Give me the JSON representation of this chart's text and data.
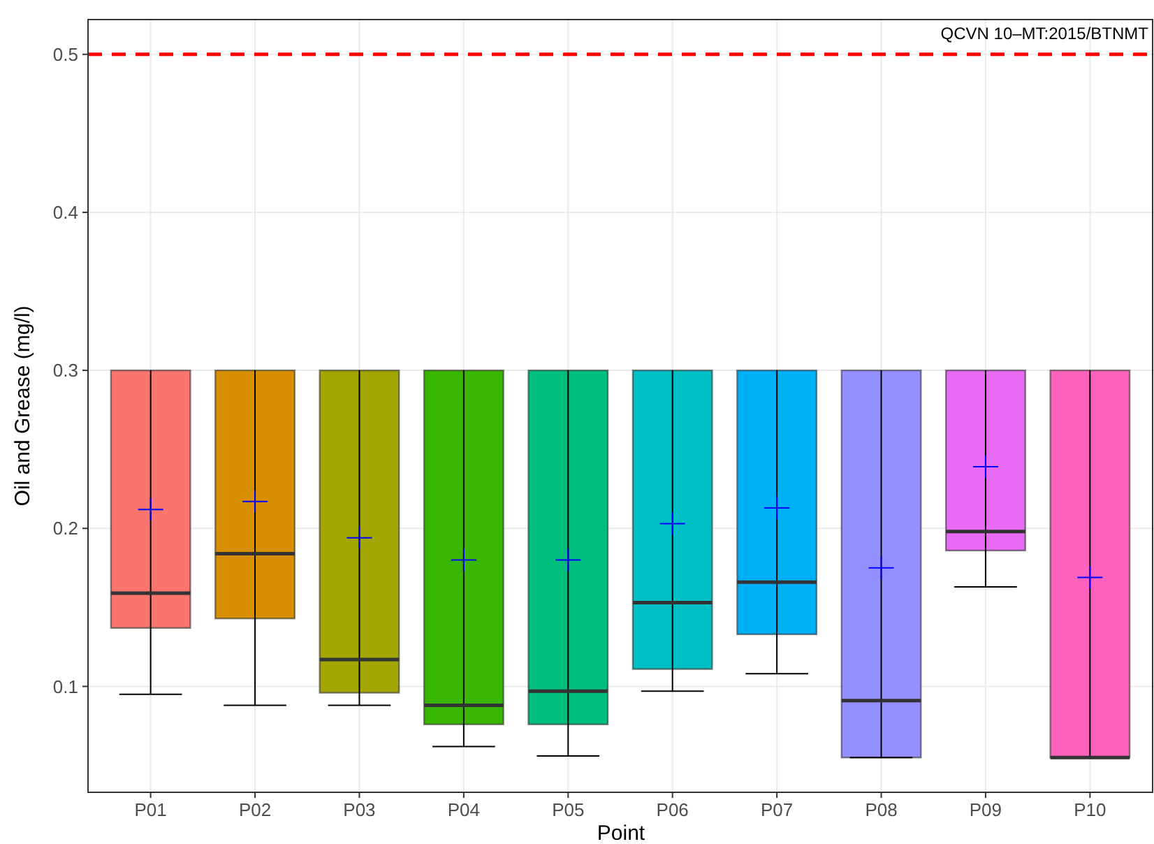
{
  "chart_data": {
    "type": "box",
    "xlabel": "Point",
    "ylabel": "Oil and Grease (mg/l)",
    "categories": [
      "P01",
      "P02",
      "P03",
      "P04",
      "P05",
      "P06",
      "P07",
      "P08",
      "P09",
      "P10"
    ],
    "colors": [
      "#f8766d",
      "#d89000",
      "#a3a500",
      "#39b600",
      "#00bf7d",
      "#00bfc4",
      "#00b0f6",
      "#9590ff",
      "#e76bf3",
      "#ff62bc"
    ],
    "boxes": [
      {
        "low": 0.095,
        "q1": 0.137,
        "median": 0.159,
        "q3": 0.3,
        "high": 0.3,
        "mean": 0.212
      },
      {
        "low": 0.088,
        "q1": 0.143,
        "median": 0.184,
        "q3": 0.3,
        "high": 0.3,
        "mean": 0.217
      },
      {
        "low": 0.088,
        "q1": 0.096,
        "median": 0.117,
        "q3": 0.3,
        "high": 0.3,
        "mean": 0.194
      },
      {
        "low": 0.062,
        "q1": 0.076,
        "median": 0.088,
        "q3": 0.3,
        "high": 0.3,
        "mean": 0.18
      },
      {
        "low": 0.056,
        "q1": 0.076,
        "median": 0.097,
        "q3": 0.3,
        "high": 0.3,
        "mean": 0.18
      },
      {
        "low": 0.097,
        "q1": 0.111,
        "median": 0.153,
        "q3": 0.3,
        "high": 0.3,
        "mean": 0.203
      },
      {
        "low": 0.108,
        "q1": 0.133,
        "median": 0.166,
        "q3": 0.3,
        "high": 0.3,
        "mean": 0.213
      },
      {
        "low": 0.055,
        "q1": 0.055,
        "median": 0.091,
        "q3": 0.3,
        "high": 0.3,
        "mean": 0.175
      },
      {
        "low": 0.163,
        "q1": 0.186,
        "median": 0.198,
        "q3": 0.3,
        "high": 0.3,
        "mean": 0.239
      },
      {
        "low": 0.055,
        "q1": 0.055,
        "median": 0.055,
        "q3": 0.3,
        "high": 0.3,
        "mean": 0.169
      }
    ],
    "ylim": [
      0.033,
      0.522
    ],
    "yticks": [
      0.1,
      0.2,
      0.3,
      0.4,
      0.5
    ],
    "grid": true,
    "annotations": [
      "QCVN 10–MT:2015/BTNMT"
    ],
    "ref_lines": [
      {
        "axis": "y",
        "value": 0.5,
        "color": "#ff0000",
        "line_style": "dashed"
      }
    ]
  }
}
